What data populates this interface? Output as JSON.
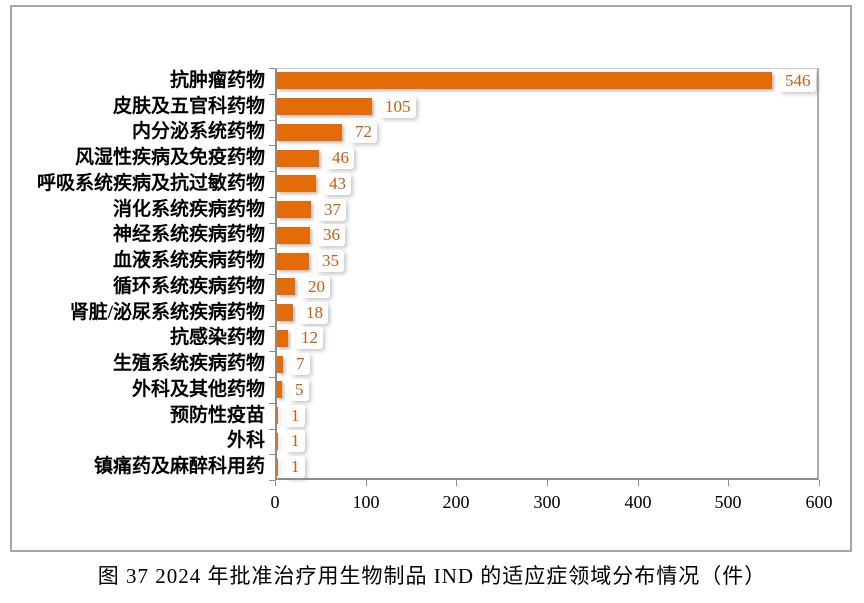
{
  "figure": {
    "caption": "图 37  2024 年批准治疗用生物制品 IND 的适应症领域分布情况（件）"
  },
  "chart_data": {
    "type": "bar",
    "orientation": "horizontal",
    "title": "图 37  2024 年批准治疗用生物制品 IND 的适应症领域分布情况（件）",
    "categories": [
      "抗肿瘤药物",
      "皮肤及五官科药物",
      "内分泌系统药物",
      "风湿性疾病及免疫药物",
      "呼吸系统疾病及抗过敏药物",
      "消化系统疾病药物",
      "神经系统疾病药物",
      "血液系统疾病药物",
      "循环系统疾病药物",
      "肾脏/泌尿系统疾病药物",
      "抗感染药物",
      "生殖系统疾病药物",
      "外科及其他药物",
      "预防性疫苗",
      "外科",
      "镇痛药及麻醉科用药"
    ],
    "values": [
      546,
      105,
      72,
      46,
      43,
      37,
      36,
      35,
      20,
      18,
      12,
      7,
      5,
      1,
      1,
      1
    ],
    "xlabel": "",
    "ylabel": "",
    "xlim": [
      0,
      600
    ],
    "x_ticks": [
      "0",
      "100",
      "200",
      "300",
      "400",
      "500",
      "600"
    ],
    "grid": false,
    "legend_position": "none",
    "colors": {
      "bar_fill": "#E36C09",
      "value_label": "#C55A11",
      "axis": "#8C8C8C",
      "frame_border": "#A6A6A6",
      "tick_label": "#000000"
    }
  }
}
